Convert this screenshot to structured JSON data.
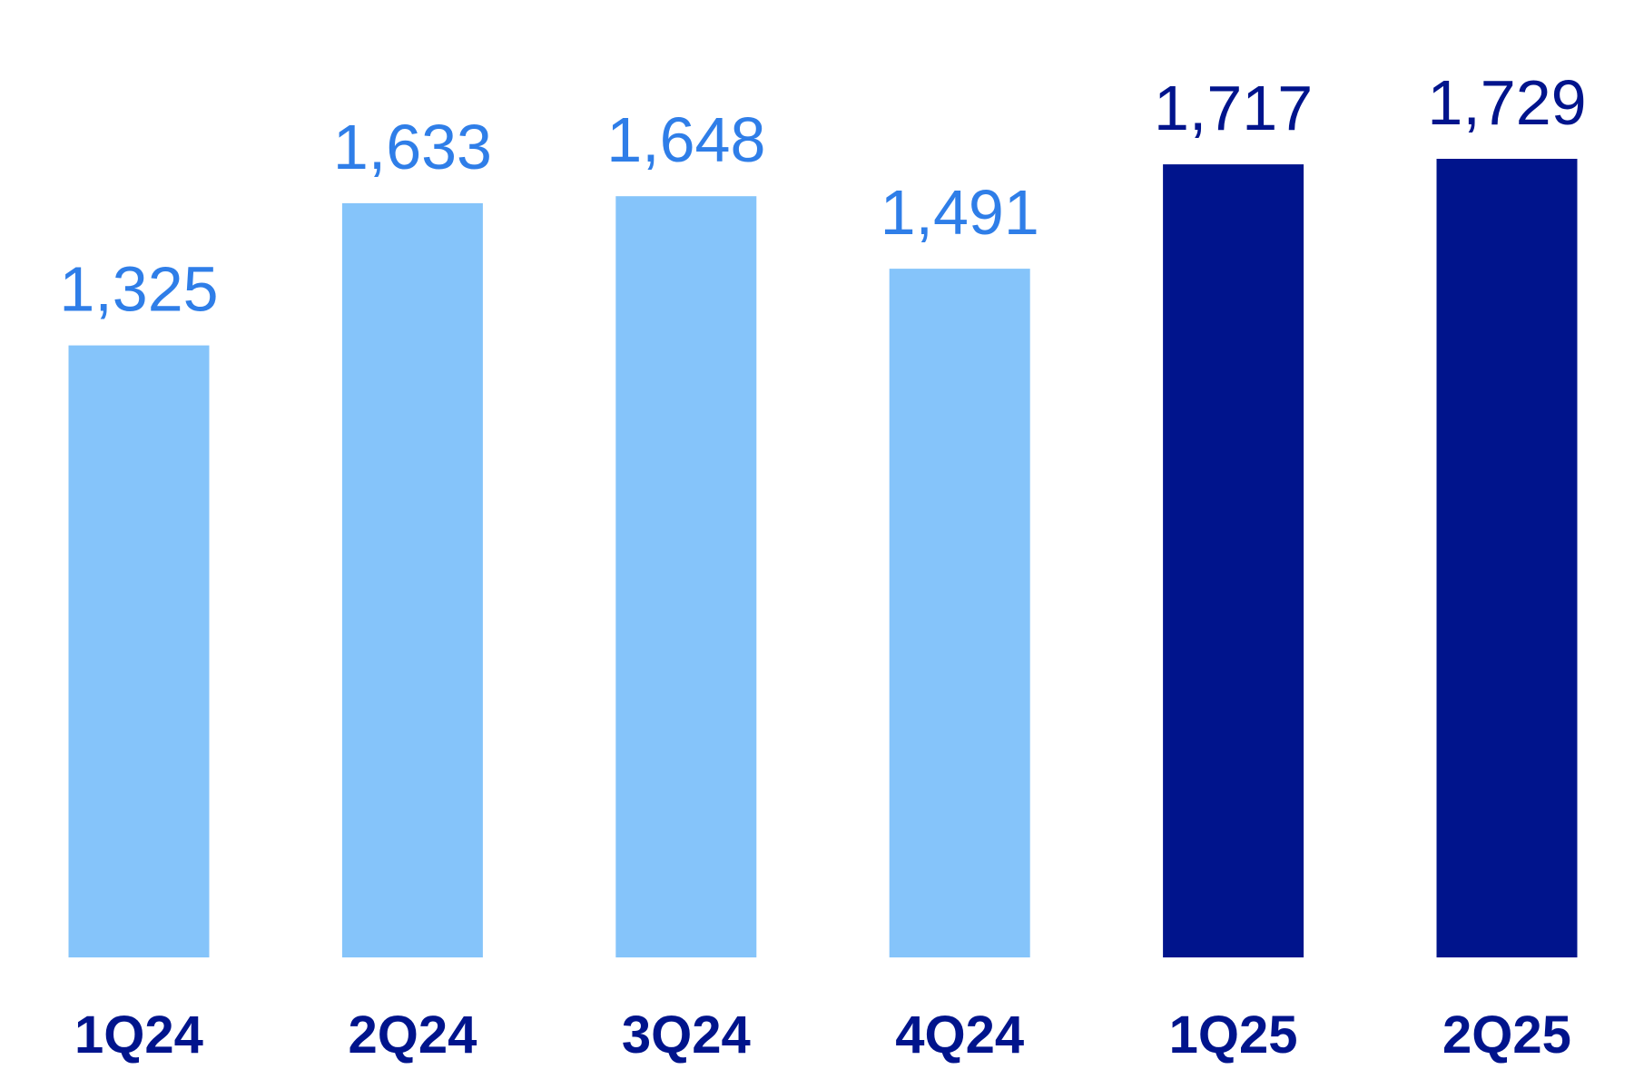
{
  "chart_data": {
    "type": "bar",
    "categories": [
      "1Q24",
      "2Q24",
      "3Q24",
      "4Q24",
      "1Q25",
      "2Q25"
    ],
    "values": [
      1325,
      1633,
      1648,
      1491,
      1717,
      1729
    ],
    "value_labels": [
      "1,325",
      "1,633",
      "1,648",
      "1,491",
      "1,717",
      "1,729"
    ],
    "title": "",
    "xlabel": "",
    "ylabel": "",
    "ylim": [
      0,
      1729
    ],
    "grid": false,
    "legend": "none",
    "colors": {
      "2024_bar": "#85c4fa",
      "2024_label": "#2f7ee8",
      "2025_bar": "#00148c",
      "2025_label": "#00148c",
      "category_label": "#00148c"
    }
  }
}
